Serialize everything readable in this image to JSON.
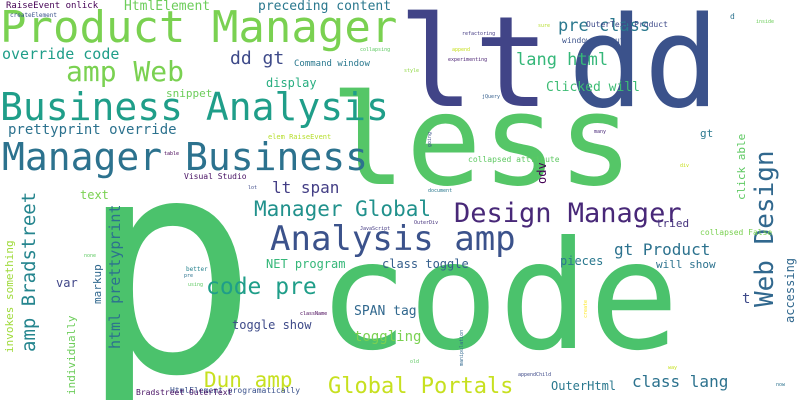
{
  "words": [
    {
      "text": "p",
      "color": "#4bc26c"
    },
    {
      "text": "code",
      "color": "#4bc26c"
    },
    {
      "text": "less",
      "color": "#55c667"
    },
    {
      "text": "dd",
      "color": "#3b528b"
    },
    {
      "text": "lt",
      "color": "#414487"
    },
    {
      "text": "Product Manager",
      "color": "#7ad151"
    },
    {
      "text": "Business Analysis",
      "color": "#1f9e89"
    },
    {
      "text": "Manager Business",
      "color": "#2c728e"
    },
    {
      "text": "Web Design",
      "color": "#31688e"
    },
    {
      "text": "Analysis amp",
      "color": "#3b528b"
    },
    {
      "text": "Design Manager",
      "color": "#482878"
    },
    {
      "text": "amp Web",
      "color": "#7ad151"
    },
    {
      "text": "Manager Global",
      "color": "#21918c"
    },
    {
      "text": "code pre",
      "color": "#1f9e89"
    },
    {
      "text": "Global Portals",
      "color": "#c7e020"
    },
    {
      "text": "Dun amp",
      "color": "#c7e020"
    },
    {
      "text": "amp Bradstreet",
      "color": "#25858e"
    },
    {
      "text": "prettyprint override",
      "color": "#2c728e"
    },
    {
      "text": "override code",
      "color": "#1f9e89"
    },
    {
      "text": "dd gt",
      "color": "#3e4a89"
    },
    {
      "text": "pre class",
      "color": "#2a788e"
    },
    {
      "text": "lang html",
      "color": "#35b779"
    },
    {
      "text": "html prettyprint",
      "color": "#2c728e"
    },
    {
      "text": "class lang",
      "color": "#2c728e"
    },
    {
      "text": "gt Product",
      "color": "#2c728e"
    },
    {
      "text": "lt span",
      "color": "#433e85"
    },
    {
      "text": "preceding content",
      "color": "#2a788e"
    },
    {
      "text": "HtmlElement",
      "color": "#6ccd5a"
    },
    {
      "text": "Clicked will",
      "color": "#3dbc74"
    },
    {
      "text": "display",
      "color": "#28ae80"
    },
    {
      "text": "snippet",
      "color": "#6ccd5a"
    },
    {
      "text": "odv",
      "color": "#440154"
    },
    {
      "text": "markup",
      "color": "#31688e"
    },
    {
      "text": "var",
      "color": "#404688"
    },
    {
      "text": "text",
      "color": "#7ad151"
    },
    {
      "text": "toggle show",
      "color": "#3e4a89"
    },
    {
      "text": "SPAN tag",
      "color": "#31688e"
    },
    {
      "text": "toggling",
      "color": "#7ad151"
    },
    {
      "text": "OuterHtml",
      "color": "#2a788e"
    },
    {
      "text": "pieces",
      "color": "#2a788e"
    },
    {
      "text": "class toggle",
      "color": "#355f8d"
    },
    {
      "text": "NET program",
      "color": "#35b779"
    },
    {
      "text": "will show",
      "color": "#2c728e"
    },
    {
      "text": "tried",
      "color": "#46337e"
    },
    {
      "text": "click able",
      "color": "#5ec962"
    },
    {
      "text": "accessing",
      "color": "#31688e"
    },
    {
      "text": "individually",
      "color": "#6ccd5a"
    },
    {
      "text": "invokes something",
      "color": "#9fda3a"
    },
    {
      "text": "gt",
      "color": "#2a788e"
    },
    {
      "text": "t",
      "color": "#3e4a89"
    },
    {
      "text": "RaiseEvent onlick",
      "color": "#440154"
    },
    {
      "text": "Command window",
      "color": "#2a788e"
    },
    {
      "text": "window output",
      "color": "#3b528b"
    },
    {
      "text": "OuterText Product",
      "color": "#3e4a89"
    },
    {
      "text": "Visual Studio",
      "color": "#471063"
    },
    {
      "text": "collapsed attribute",
      "color": "#5ec962"
    },
    {
      "text": "HtmlElement programatically",
      "color": "#3b528b"
    },
    {
      "text": "Bradstreet OuterText",
      "color": "#471063"
    },
    {
      "text": "collapsed False",
      "color": "#7ad151"
    },
    {
      "text": "elem RaiseEvent",
      "color": "#b5de2b"
    },
    {
      "text": "d",
      "color": "#2c728e"
    },
    {
      "text": "createElement",
      "color": "#3b528b"
    },
    {
      "text": "collapsing",
      "color": "#5ec962"
    },
    {
      "text": "refactoring",
      "color": "#443a83"
    },
    {
      "text": "append",
      "color": "#c7e020"
    },
    {
      "text": "experimenting",
      "color": "#481f70"
    },
    {
      "text": "style",
      "color": "#8fd744"
    },
    {
      "text": "jQuery",
      "color": "#355f8d"
    },
    {
      "text": "going",
      "color": "#3b528b"
    },
    {
      "text": "document",
      "color": "#2a788e"
    },
    {
      "text": "JavaScript",
      "color": "#443a83"
    },
    {
      "text": "OuterDiv",
      "color": "#46337e"
    },
    {
      "text": "many",
      "color": "#482878"
    },
    {
      "text": "div",
      "color": "#c7e020"
    },
    {
      "text": "sure",
      "color": "#b5de2b"
    },
    {
      "text": "table",
      "color": "#440154"
    },
    {
      "text": "lot",
      "color": "#3e4a89"
    },
    {
      "text": "better",
      "color": "#26828e"
    },
    {
      "text": "pre",
      "color": "#2c728e"
    },
    {
      "text": "using",
      "color": "#5ec962"
    },
    {
      "text": "none",
      "color": "#5ec962"
    },
    {
      "text": "className",
      "color": "#440154"
    },
    {
      "text": "manipulation",
      "color": "#31688e"
    },
    {
      "text": "appendChild",
      "color": "#3e4a89"
    },
    {
      "text": "old",
      "color": "#5ec962"
    },
    {
      "text": "create",
      "color": "#fde725"
    },
    {
      "text": "way",
      "color": "#c7e020"
    },
    {
      "text": "inside",
      "color": "#6ccd5a"
    },
    {
      "text": "now",
      "color": "#2c728e"
    }
  ]
}
